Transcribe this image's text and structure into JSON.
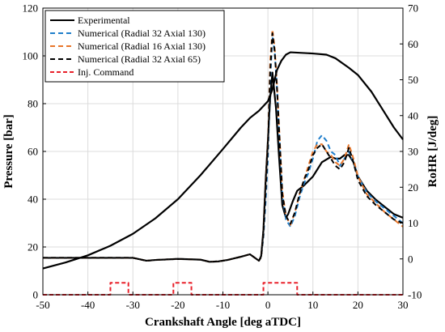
{
  "chart_data": {
    "type": "line",
    "xlabel": "Crankshaft Angle [deg aTDC]",
    "ylabel_left": "Pressure [bar]",
    "ylabel_right": "RoHR [J/deg]",
    "xlim": [
      -50,
      30
    ],
    "ylim_left": [
      0,
      120
    ],
    "ylim_right": [
      -10,
      70
    ],
    "x_ticks": [
      -50,
      -40,
      -30,
      -20,
      -10,
      0,
      10,
      20,
      30
    ],
    "y_ticks_left": [
      0,
      20,
      40,
      60,
      80,
      100,
      120
    ],
    "y_ticks_right": [
      -10,
      0,
      10,
      20,
      30,
      40,
      50,
      60,
      70
    ],
    "grid": true,
    "legend_position": "top-left",
    "series": [
      {
        "name": "Experimental",
        "axis": "left",
        "color": "#000000",
        "dash": "solid",
        "points": [
          [
            -50,
            11
          ],
          [
            -45,
            13.5
          ],
          [
            -40,
            16.5
          ],
          [
            -35,
            20.5
          ],
          [
            -30,
            25.5
          ],
          [
            -25,
            32
          ],
          [
            -20,
            40
          ],
          [
            -15,
            50
          ],
          [
            -10,
            61
          ],
          [
            -6,
            70
          ],
          [
            -4,
            74
          ],
          [
            -2,
            77
          ],
          [
            0,
            81
          ],
          [
            1,
            86
          ],
          [
            2,
            94
          ],
          [
            3,
            98
          ],
          [
            4,
            100.5
          ],
          [
            5,
            101.5
          ],
          [
            10,
            101
          ],
          [
            13,
            100.5
          ],
          [
            15,
            99
          ],
          [
            18,
            95
          ],
          [
            20,
            92
          ],
          [
            23,
            85
          ],
          [
            25,
            79
          ],
          [
            28,
            70
          ],
          [
            30,
            65
          ]
        ]
      },
      {
        "name": "Experimental",
        "axis": "right",
        "color": "#000000",
        "dash": "solid",
        "points": [
          [
            -50,
            0.3
          ],
          [
            -40,
            0.3
          ],
          [
            -30,
            0.3
          ],
          [
            -27,
            -0.5
          ],
          [
            -25,
            -0.3
          ],
          [
            -20,
            0
          ],
          [
            -15,
            -0.2
          ],
          [
            -13,
            -0.8
          ],
          [
            -11,
            -0.7
          ],
          [
            -9,
            -0.3
          ],
          [
            -6,
            0.6
          ],
          [
            -4,
            1.3
          ],
          [
            -3,
            0.4
          ],
          [
            -2,
            -0.5
          ],
          [
            -1.5,
            0.8
          ],
          [
            -1,
            8
          ],
          [
            -0.5,
            22
          ],
          [
            0,
            33
          ],
          [
            0.5,
            45
          ],
          [
            1,
            52
          ],
          [
            1.8,
            42
          ],
          [
            2.5,
            28
          ],
          [
            3.2,
            15
          ],
          [
            4,
            11.5
          ],
          [
            4.5,
            12.5
          ],
          [
            5.5,
            16
          ],
          [
            6.5,
            19
          ],
          [
            8,
            20.5
          ],
          [
            10,
            23
          ],
          [
            11,
            25
          ],
          [
            12,
            27
          ],
          [
            14,
            28.5
          ],
          [
            15,
            28
          ],
          [
            16,
            28
          ],
          [
            17,
            29
          ],
          [
            18,
            29
          ],
          [
            19,
            27
          ],
          [
            20,
            23
          ],
          [
            22,
            19
          ],
          [
            24,
            16.5
          ],
          [
            26,
            14.5
          ],
          [
            28,
            12.5
          ],
          [
            30,
            11.5
          ]
        ]
      },
      {
        "name": "Numerical (Radial 32 Axial 130)",
        "axis": "right",
        "color": "#1f7ecb",
        "dash": "6,4",
        "points": [
          [
            -50,
            0.3
          ],
          [
            -40,
            0.3
          ],
          [
            -30,
            0.3
          ],
          [
            -27,
            -0.5
          ],
          [
            -25,
            -0.3
          ],
          [
            -20,
            0
          ],
          [
            -15,
            -0.2
          ],
          [
            -13,
            -0.8
          ],
          [
            -11,
            -0.7
          ],
          [
            -9,
            -0.3
          ],
          [
            -6,
            0.6
          ],
          [
            -4,
            1.3
          ],
          [
            -3,
            0.4
          ],
          [
            -2,
            -0.5
          ],
          [
            -1.5,
            0.5
          ],
          [
            -1,
            6
          ],
          [
            -0.5,
            16
          ],
          [
            0,
            28
          ],
          [
            0.5,
            50
          ],
          [
            1,
            62
          ],
          [
            1.5,
            58
          ],
          [
            2,
            48
          ],
          [
            2.6,
            33
          ],
          [
            3.2,
            18
          ],
          [
            4,
            11
          ],
          [
            5,
            9
          ],
          [
            6,
            12
          ],
          [
            7,
            17
          ],
          [
            8,
            21
          ],
          [
            9,
            24
          ],
          [
            10,
            28
          ],
          [
            11,
            33
          ],
          [
            12,
            34.5
          ],
          [
            13,
            33
          ],
          [
            14,
            30
          ],
          [
            15,
            29
          ],
          [
            16,
            26
          ],
          [
            17,
            28
          ],
          [
            18,
            30
          ],
          [
            19,
            27
          ],
          [
            20,
            23
          ],
          [
            22,
            18.5
          ],
          [
            24,
            16
          ],
          [
            26,
            14
          ],
          [
            28,
            12
          ],
          [
            30,
            10
          ]
        ]
      },
      {
        "name": "Numerical (Radial 16 Axial 130)",
        "axis": "right",
        "color": "#e8762a",
        "dash": "6,4",
        "points": [
          [
            -50,
            0.3
          ],
          [
            -40,
            0.3
          ],
          [
            -30,
            0.3
          ],
          [
            -27,
            -0.5
          ],
          [
            -25,
            -0.3
          ],
          [
            -20,
            0
          ],
          [
            -15,
            -0.2
          ],
          [
            -13,
            -0.8
          ],
          [
            -11,
            -0.7
          ],
          [
            -9,
            -0.3
          ],
          [
            -6,
            0.6
          ],
          [
            -4,
            1.3
          ],
          [
            -3,
            0.4
          ],
          [
            -2,
            -0.5
          ],
          [
            -1.5,
            0.5
          ],
          [
            -1,
            7
          ],
          [
            -0.5,
            20
          ],
          [
            0,
            32
          ],
          [
            0.5,
            55
          ],
          [
            1,
            64
          ],
          [
            1.5,
            59
          ],
          [
            2,
            49
          ],
          [
            2.6,
            34
          ],
          [
            3.2,
            19
          ],
          [
            4,
            12
          ],
          [
            5,
            9.5
          ],
          [
            6,
            13
          ],
          [
            7,
            18
          ],
          [
            8,
            22
          ],
          [
            9,
            26
          ],
          [
            10,
            30
          ],
          [
            11,
            32
          ],
          [
            12,
            32
          ],
          [
            13,
            30
          ],
          [
            14,
            29
          ],
          [
            15,
            27
          ],
          [
            16,
            26
          ],
          [
            17,
            28
          ],
          [
            18,
            32
          ],
          [
            19,
            28
          ],
          [
            20,
            23
          ],
          [
            22,
            18
          ],
          [
            24,
            15.5
          ],
          [
            26,
            13
          ],
          [
            28,
            11
          ],
          [
            30,
            9
          ]
        ]
      },
      {
        "name": "Numerical (Radial 32 Axial 65)",
        "axis": "right",
        "color": "#000000",
        "dash": "6,4",
        "points": [
          [
            -50,
            0.3
          ],
          [
            -40,
            0.3
          ],
          [
            -30,
            0.3
          ],
          [
            -27,
            -0.5
          ],
          [
            -25,
            -0.3
          ],
          [
            -20,
            0
          ],
          [
            -15,
            -0.2
          ],
          [
            -13,
            -0.8
          ],
          [
            -11,
            -0.7
          ],
          [
            -9,
            -0.3
          ],
          [
            -6,
            0.6
          ],
          [
            -4,
            1.3
          ],
          [
            -3,
            0.4
          ],
          [
            -2,
            -0.5
          ],
          [
            -1.5,
            0.5
          ],
          [
            -1,
            7
          ],
          [
            -0.5,
            19
          ],
          [
            0,
            31
          ],
          [
            0.5,
            52
          ],
          [
            1,
            63
          ],
          [
            1.5,
            58
          ],
          [
            2,
            48
          ],
          [
            2.6,
            33
          ],
          [
            3.2,
            18
          ],
          [
            4,
            12
          ],
          [
            5,
            9.8
          ],
          [
            6,
            13
          ],
          [
            7,
            18
          ],
          [
            8,
            22
          ],
          [
            9,
            25
          ],
          [
            10,
            29
          ],
          [
            11,
            31
          ],
          [
            12,
            32
          ],
          [
            13,
            30
          ],
          [
            14,
            28
          ],
          [
            15,
            26
          ],
          [
            16,
            25
          ],
          [
            17,
            27
          ],
          [
            18,
            31
          ],
          [
            19,
            27
          ],
          [
            20,
            22
          ],
          [
            22,
            17.5
          ],
          [
            24,
            15
          ],
          [
            26,
            13
          ],
          [
            28,
            11
          ],
          [
            30,
            10
          ]
        ]
      },
      {
        "name": "Inj. Command",
        "axis": "left",
        "color": "#e8202a",
        "dash": "5,3",
        "points": [
          [
            -50,
            0
          ],
          [
            -35,
            0
          ],
          [
            -35,
            5
          ],
          [
            -31,
            5
          ],
          [
            -31,
            0
          ],
          [
            -21,
            0
          ],
          [
            -21,
            5
          ],
          [
            -17,
            5
          ],
          [
            -17,
            0
          ],
          [
            -1,
            0
          ],
          [
            -1,
            5
          ],
          [
            6.5,
            5
          ],
          [
            6.5,
            0
          ],
          [
            30,
            0
          ]
        ]
      }
    ],
    "legend": [
      {
        "label": "Experimental",
        "color": "#000000",
        "dash": "solid"
      },
      {
        "label": "Numerical (Radial 32 Axial 130)",
        "color": "#1f7ecb",
        "dash": "6,4"
      },
      {
        "label": "Numerical (Radial 16 Axial 130)",
        "color": "#e8762a",
        "dash": "6,4"
      },
      {
        "label": "Numerical (Radial 32 Axial 65)",
        "color": "#000000",
        "dash": "6,4"
      },
      {
        "label": "Inj. Command",
        "color": "#e8202a",
        "dash": "5,3"
      }
    ]
  }
}
